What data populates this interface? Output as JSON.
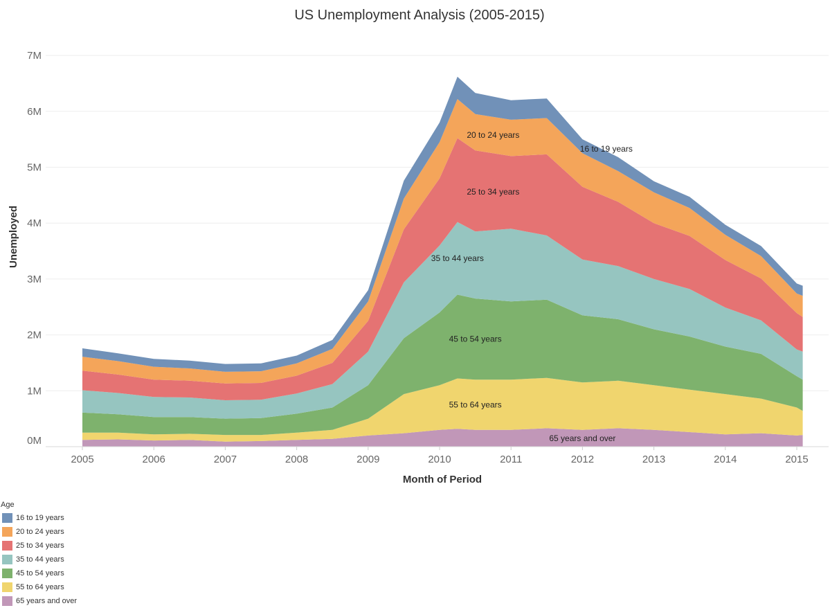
{
  "chart_data": {
    "type": "area",
    "stacked": true,
    "title": "US Unemployment Analysis (2005-2015)",
    "xlabel": "Month of Period",
    "ylabel": "Unemployed",
    "x_ticks": [
      "2005",
      "2006",
      "2007",
      "2008",
      "2009",
      "2010",
      "2011",
      "2012",
      "2013",
      "2014",
      "2015"
    ],
    "y_ticks": [
      "0M",
      "1M",
      "2M",
      "3M",
      "4M",
      "5M",
      "6M",
      "7M"
    ],
    "ylim": [
      0,
      7200000
    ],
    "xlim": [
      "2005-01",
      "2015-02"
    ],
    "grid": "horizontal",
    "x": [
      "2005-01",
      "2005-07",
      "2006-01",
      "2006-07",
      "2007-01",
      "2007-07",
      "2008-01",
      "2008-07",
      "2009-01",
      "2009-07",
      "2010-01",
      "2010-04",
      "2010-07",
      "2011-01",
      "2011-07",
      "2012-01",
      "2012-07",
      "2013-01",
      "2013-07",
      "2014-01",
      "2014-07",
      "2015-01",
      "2015-02"
    ],
    "series": [
      {
        "name": "65 years and over",
        "color": "#c197b8",
        "values": [
          120000,
          130000,
          110000,
          120000,
          90000,
          100000,
          120000,
          140000,
          200000,
          240000,
          300000,
          320000,
          300000,
          300000,
          330000,
          300000,
          330000,
          300000,
          260000,
          220000,
          240000,
          200000,
          210000
        ]
      },
      {
        "name": "55 to 64 years",
        "color": "#f0d56e",
        "values": [
          130000,
          120000,
          110000,
          110000,
          120000,
          110000,
          130000,
          160000,
          300000,
          700000,
          800000,
          900000,
          900000,
          900000,
          900000,
          850000,
          850000,
          800000,
          760000,
          720000,
          620000,
          500000,
          430000
        ]
      },
      {
        "name": "45 to 54 years",
        "color": "#7eb26d",
        "values": [
          360000,
          330000,
          310000,
          300000,
          290000,
          300000,
          340000,
          400000,
          600000,
          1000000,
          1300000,
          1500000,
          1450000,
          1400000,
          1400000,
          1200000,
          1100000,
          1000000,
          950000,
          850000,
          800000,
          560000,
          560000
        ]
      },
      {
        "name": "35 to 44 years",
        "color": "#96c5c0",
        "values": [
          400000,
          380000,
          360000,
          350000,
          330000,
          330000,
          360000,
          420000,
          600000,
          1000000,
          1200000,
          1300000,
          1200000,
          1300000,
          1150000,
          1000000,
          950000,
          900000,
          850000,
          700000,
          600000,
          480000,
          500000
        ]
      },
      {
        "name": "25 to 34 years",
        "color": "#e57373",
        "values": [
          350000,
          330000,
          310000,
          300000,
          300000,
          300000,
          320000,
          380000,
          550000,
          950000,
          1200000,
          1500000,
          1450000,
          1300000,
          1450000,
          1300000,
          1150000,
          1000000,
          950000,
          850000,
          750000,
          650000,
          620000
        ]
      },
      {
        "name": "20 to 24 years",
        "color": "#f4a55a",
        "values": [
          250000,
          240000,
          230000,
          220000,
          210000,
          210000,
          220000,
          250000,
          350000,
          550000,
          650000,
          700000,
          650000,
          650000,
          650000,
          600000,
          550000,
          550000,
          500000,
          450000,
          400000,
          350000,
          380000
        ]
      },
      {
        "name": "16 to 19 years",
        "color": "#7191b8",
        "values": [
          150000,
          140000,
          140000,
          140000,
          140000,
          140000,
          140000,
          160000,
          200000,
          320000,
          350000,
          400000,
          380000,
          350000,
          350000,
          250000,
          250000,
          200000,
          200000,
          180000,
          180000,
          180000,
          180000
        ]
      }
    ],
    "legend": {
      "title": "Age",
      "position": "bottom-left"
    },
    "annotations": [
      {
        "series": "20 to 24 years",
        "text": "20 to 24 years"
      },
      {
        "series": "16 to 19 years",
        "text": "16 to 19 years"
      },
      {
        "series": "25 to 34 years",
        "text": "25 to 34 years"
      },
      {
        "series": "35 to 44 years",
        "text": "35 to 44 years"
      },
      {
        "series": "45 to 54 years",
        "text": "45 to 54 years"
      },
      {
        "series": "55 to 64 years",
        "text": "55 to 64 years"
      },
      {
        "series": "65 years and over",
        "text": "65 years and over"
      }
    ]
  }
}
